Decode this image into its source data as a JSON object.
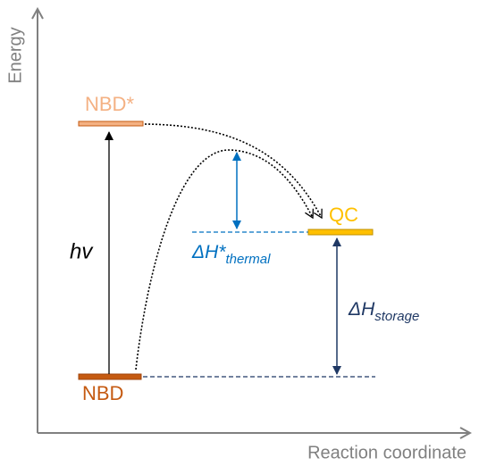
{
  "axes": {
    "y_label": "Energy",
    "x_label": "Reaction coordinate"
  },
  "levels": {
    "nbd_star": "NBD*",
    "nbd": "NBD",
    "qc": "QC"
  },
  "annotations": {
    "excitation": "hv",
    "thermal": {
      "main": "ΔH*",
      "sub": "thermal"
    },
    "storage": {
      "main": "ΔH",
      "sub": "storage"
    }
  }
}
